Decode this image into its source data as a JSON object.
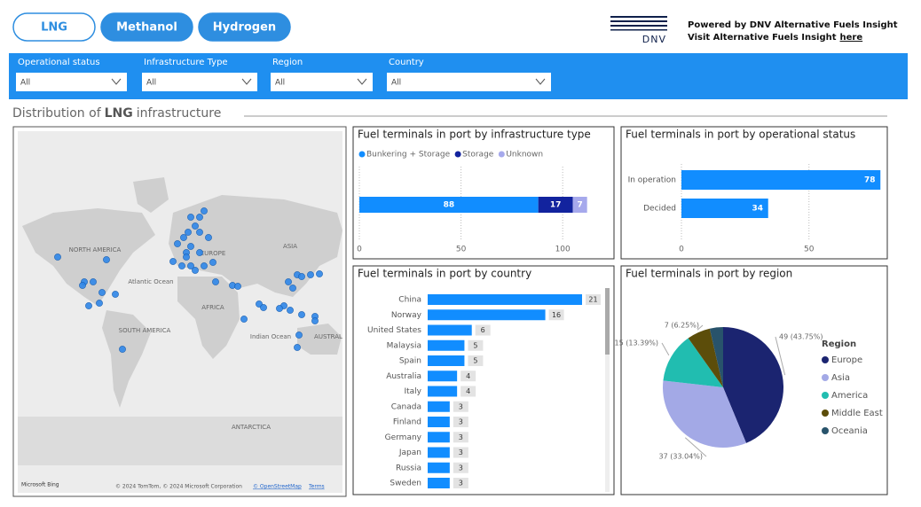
{
  "tabs": [
    "LNG",
    "Methanol",
    "Hydrogen"
  ],
  "header": {
    "logo": "DNV",
    "powered": "Powered by DNV Alternative Fuels Insight",
    "visit": "Visit Alternative Fuels Insight",
    "link": "here"
  },
  "filters": [
    {
      "label": "Operational status",
      "value": "All"
    },
    {
      "label": "Infrastructure Type",
      "value": "All"
    },
    {
      "label": "Region",
      "value": "All"
    },
    {
      "label": "Country",
      "value": "All"
    }
  ],
  "section": {
    "prefix": "Distribution of",
    "fuel": "LNG",
    "suffix": "infrastructure"
  },
  "map": {
    "labels": [
      "NORTH AMERICA",
      "EUROPE",
      "ASIA",
      "Atlantic Ocean",
      "AFRICA",
      "SOUTH AMERICA",
      "Indian Ocean",
      "AUSTRAL",
      "ANTARCTICA"
    ],
    "attribution": {
      "logo": "Microsoft Bing",
      "copyright": "© 2024 TomTom, © 2024 Microsoft Corporation",
      "osm": "© OpenStreetMap",
      "terms": "Terms"
    }
  },
  "chart_data": [
    {
      "type": "bar",
      "title": "Fuel terminals in port by infrastructure type",
      "categories": [
        null
      ],
      "series": [
        {
          "name": "Bunkering + Storage",
          "color": "#118dff",
          "values": [
            88
          ]
        },
        {
          "name": "Storage",
          "color": "#12239e",
          "values": [
            17
          ]
        },
        {
          "name": "Unknown",
          "color": "#a6a9ec",
          "values": [
            7
          ]
        }
      ],
      "xlim": [
        0,
        120
      ],
      "xticks": [
        0,
        50,
        100
      ],
      "grid": true
    },
    {
      "type": "bar",
      "title": "Fuel terminals in port by operational status",
      "categories": [
        "In operation",
        "Decided"
      ],
      "values": [
        78,
        34
      ],
      "color": "#118dff",
      "xlim": [
        0,
        80
      ],
      "xticks": [
        0,
        50
      ],
      "grid": true
    },
    {
      "type": "bar",
      "title": "Fuel terminals in port by country",
      "categories": [
        "China",
        "Norway",
        "United States",
        "Malaysia",
        "Spain",
        "Australia",
        "Italy",
        "Canada",
        "Finland",
        "Germany",
        "Japan",
        "Russia",
        "Sweden"
      ],
      "values": [
        21,
        16,
        6,
        5,
        5,
        4,
        4,
        3,
        3,
        3,
        3,
        3,
        3
      ],
      "color": "#118dff"
    },
    {
      "type": "pie",
      "title": "Fuel terminals in port by region",
      "legend_title": "Region",
      "categories": [
        "Europe",
        "Asia",
        "America",
        "Middle East",
        "Oceania"
      ],
      "values": [
        49,
        37,
        15,
        7,
        4
      ],
      "value_labels": [
        "49 (43.75%)",
        "37 (33.04%)",
        "15 (13.39%)",
        "7 (6.25%)",
        null
      ],
      "colors": [
        "#1b2470",
        "#a3a9e6",
        "#21bdb0",
        "#5c4d0a",
        "#28536b"
      ]
    }
  ]
}
